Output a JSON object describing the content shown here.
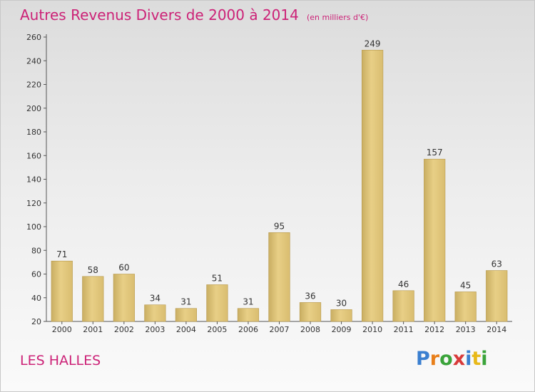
{
  "chart_data": {
    "type": "bar",
    "title": "Autres Revenus Divers de 2000 à 2014",
    "subtitle": "(en milliers d'€)",
    "categories": [
      "2000",
      "2001",
      "2002",
      "2003",
      "2004",
      "2005",
      "2006",
      "2007",
      "2008",
      "2009",
      "2010",
      "2011",
      "2012",
      "2013",
      "2014"
    ],
    "values": [
      71,
      58,
      60,
      34,
      31,
      51,
      31,
      95,
      36,
      30,
      249,
      46,
      157,
      45,
      63
    ],
    "ylim": [
      20,
      260
    ],
    "yticks": [
      20,
      40,
      60,
      80,
      100,
      120,
      140,
      160,
      180,
      200,
      220,
      240,
      260
    ],
    "grid": false,
    "bar_color": "#e8cf86"
  },
  "location": "LES HALLES",
  "logo": {
    "text": "Proxiti",
    "parts": [
      "P",
      "r",
      "o",
      "x",
      "i",
      "t",
      "i"
    ]
  },
  "colors": {
    "title": "#cc2277",
    "axis": "#555555"
  }
}
